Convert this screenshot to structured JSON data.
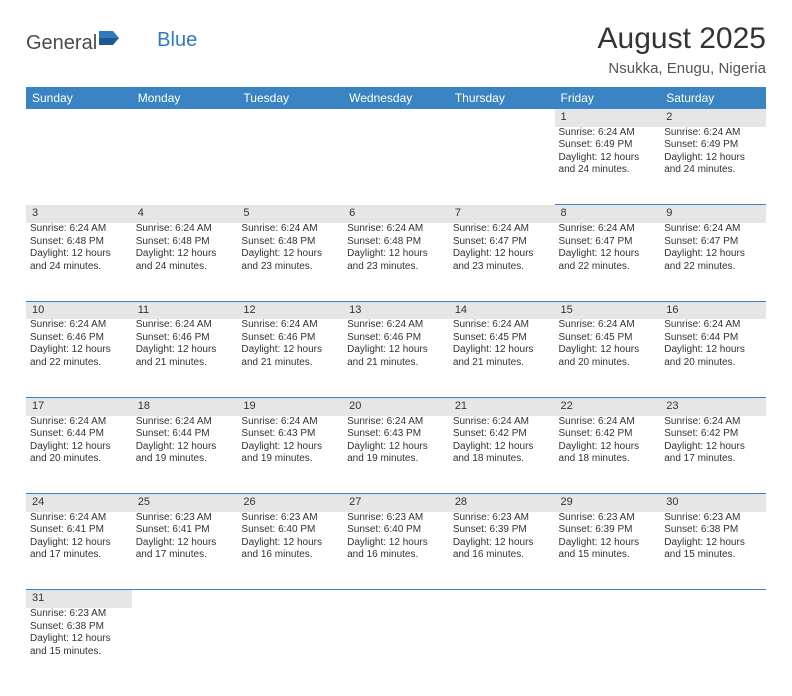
{
  "logo": {
    "text1": "General",
    "text2": "Blue"
  },
  "title": "August 2025",
  "location": "Nsukka, Enugu, Nigeria",
  "colors": {
    "header_bg": "#3b84c4",
    "header_text": "#ffffff",
    "daynum_bg": "#e6e6e6",
    "border": "#3b84c4",
    "text": "#333333",
    "logo_gray": "#4a4a4a",
    "logo_blue": "#2e7bc0"
  },
  "weekdays": [
    "Sunday",
    "Monday",
    "Tuesday",
    "Wednesday",
    "Thursday",
    "Friday",
    "Saturday"
  ],
  "weeks": [
    [
      null,
      null,
      null,
      null,
      null,
      {
        "n": "1",
        "lines": [
          "Sunrise: 6:24 AM",
          "Sunset: 6:49 PM",
          "Daylight: 12 hours",
          "and 24 minutes."
        ]
      },
      {
        "n": "2",
        "lines": [
          "Sunrise: 6:24 AM",
          "Sunset: 6:49 PM",
          "Daylight: 12 hours",
          "and 24 minutes."
        ]
      }
    ],
    [
      {
        "n": "3",
        "lines": [
          "Sunrise: 6:24 AM",
          "Sunset: 6:48 PM",
          "Daylight: 12 hours",
          "and 24 minutes."
        ]
      },
      {
        "n": "4",
        "lines": [
          "Sunrise: 6:24 AM",
          "Sunset: 6:48 PM",
          "Daylight: 12 hours",
          "and 24 minutes."
        ]
      },
      {
        "n": "5",
        "lines": [
          "Sunrise: 6:24 AM",
          "Sunset: 6:48 PM",
          "Daylight: 12 hours",
          "and 23 minutes."
        ]
      },
      {
        "n": "6",
        "lines": [
          "Sunrise: 6:24 AM",
          "Sunset: 6:48 PM",
          "Daylight: 12 hours",
          "and 23 minutes."
        ]
      },
      {
        "n": "7",
        "lines": [
          "Sunrise: 6:24 AM",
          "Sunset: 6:47 PM",
          "Daylight: 12 hours",
          "and 23 minutes."
        ]
      },
      {
        "n": "8",
        "lines": [
          "Sunrise: 6:24 AM",
          "Sunset: 6:47 PM",
          "Daylight: 12 hours",
          "and 22 minutes."
        ]
      },
      {
        "n": "9",
        "lines": [
          "Sunrise: 6:24 AM",
          "Sunset: 6:47 PM",
          "Daylight: 12 hours",
          "and 22 minutes."
        ]
      }
    ],
    [
      {
        "n": "10",
        "lines": [
          "Sunrise: 6:24 AM",
          "Sunset: 6:46 PM",
          "Daylight: 12 hours",
          "and 22 minutes."
        ]
      },
      {
        "n": "11",
        "lines": [
          "Sunrise: 6:24 AM",
          "Sunset: 6:46 PM",
          "Daylight: 12 hours",
          "and 21 minutes."
        ]
      },
      {
        "n": "12",
        "lines": [
          "Sunrise: 6:24 AM",
          "Sunset: 6:46 PM",
          "Daylight: 12 hours",
          "and 21 minutes."
        ]
      },
      {
        "n": "13",
        "lines": [
          "Sunrise: 6:24 AM",
          "Sunset: 6:46 PM",
          "Daylight: 12 hours",
          "and 21 minutes."
        ]
      },
      {
        "n": "14",
        "lines": [
          "Sunrise: 6:24 AM",
          "Sunset: 6:45 PM",
          "Daylight: 12 hours",
          "and 21 minutes."
        ]
      },
      {
        "n": "15",
        "lines": [
          "Sunrise: 6:24 AM",
          "Sunset: 6:45 PM",
          "Daylight: 12 hours",
          "and 20 minutes."
        ]
      },
      {
        "n": "16",
        "lines": [
          "Sunrise: 6:24 AM",
          "Sunset: 6:44 PM",
          "Daylight: 12 hours",
          "and 20 minutes."
        ]
      }
    ],
    [
      {
        "n": "17",
        "lines": [
          "Sunrise: 6:24 AM",
          "Sunset: 6:44 PM",
          "Daylight: 12 hours",
          "and 20 minutes."
        ]
      },
      {
        "n": "18",
        "lines": [
          "Sunrise: 6:24 AM",
          "Sunset: 6:44 PM",
          "Daylight: 12 hours",
          "and 19 minutes."
        ]
      },
      {
        "n": "19",
        "lines": [
          "Sunrise: 6:24 AM",
          "Sunset: 6:43 PM",
          "Daylight: 12 hours",
          "and 19 minutes."
        ]
      },
      {
        "n": "20",
        "lines": [
          "Sunrise: 6:24 AM",
          "Sunset: 6:43 PM",
          "Daylight: 12 hours",
          "and 19 minutes."
        ]
      },
      {
        "n": "21",
        "lines": [
          "Sunrise: 6:24 AM",
          "Sunset: 6:42 PM",
          "Daylight: 12 hours",
          "and 18 minutes."
        ]
      },
      {
        "n": "22",
        "lines": [
          "Sunrise: 6:24 AM",
          "Sunset: 6:42 PM",
          "Daylight: 12 hours",
          "and 18 minutes."
        ]
      },
      {
        "n": "23",
        "lines": [
          "Sunrise: 6:24 AM",
          "Sunset: 6:42 PM",
          "Daylight: 12 hours",
          "and 17 minutes."
        ]
      }
    ],
    [
      {
        "n": "24",
        "lines": [
          "Sunrise: 6:24 AM",
          "Sunset: 6:41 PM",
          "Daylight: 12 hours",
          "and 17 minutes."
        ]
      },
      {
        "n": "25",
        "lines": [
          "Sunrise: 6:23 AM",
          "Sunset: 6:41 PM",
          "Daylight: 12 hours",
          "and 17 minutes."
        ]
      },
      {
        "n": "26",
        "lines": [
          "Sunrise: 6:23 AM",
          "Sunset: 6:40 PM",
          "Daylight: 12 hours",
          "and 16 minutes."
        ]
      },
      {
        "n": "27",
        "lines": [
          "Sunrise: 6:23 AM",
          "Sunset: 6:40 PM",
          "Daylight: 12 hours",
          "and 16 minutes."
        ]
      },
      {
        "n": "28",
        "lines": [
          "Sunrise: 6:23 AM",
          "Sunset: 6:39 PM",
          "Daylight: 12 hours",
          "and 16 minutes."
        ]
      },
      {
        "n": "29",
        "lines": [
          "Sunrise: 6:23 AM",
          "Sunset: 6:39 PM",
          "Daylight: 12 hours",
          "and 15 minutes."
        ]
      },
      {
        "n": "30",
        "lines": [
          "Sunrise: 6:23 AM",
          "Sunset: 6:38 PM",
          "Daylight: 12 hours",
          "and 15 minutes."
        ]
      }
    ],
    [
      {
        "n": "31",
        "lines": [
          "Sunrise: 6:23 AM",
          "Sunset: 6:38 PM",
          "Daylight: 12 hours",
          "and 15 minutes."
        ]
      },
      null,
      null,
      null,
      null,
      null,
      null
    ]
  ]
}
